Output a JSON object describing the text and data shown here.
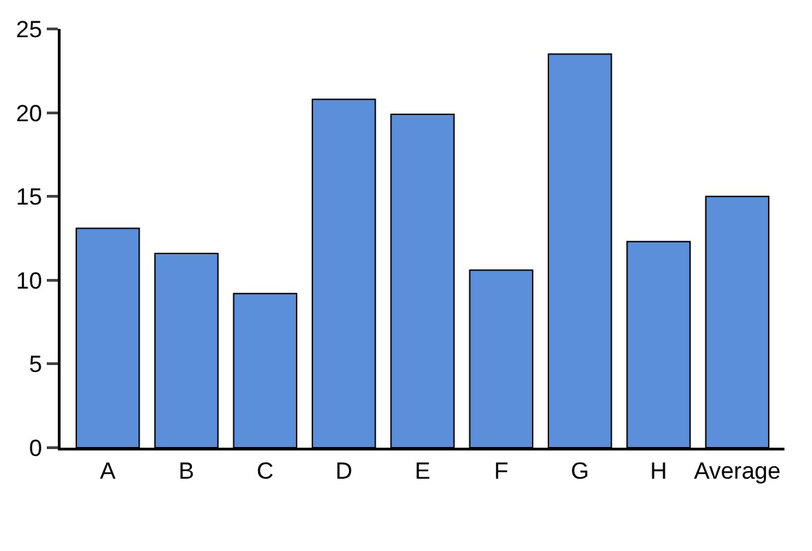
{
  "chart_data": {
    "type": "bar",
    "categories": [
      "A",
      "B",
      "C",
      "D",
      "E",
      "F",
      "G",
      "H",
      "Average"
    ],
    "values": [
      13.1,
      11.6,
      9.2,
      20.8,
      19.9,
      10.6,
      23.5,
      12.3,
      15.0
    ],
    "color": "#5c8fd9",
    "ylim": [
      0,
      25
    ],
    "yticks": [
      0,
      5,
      10,
      15,
      20,
      25
    ]
  }
}
